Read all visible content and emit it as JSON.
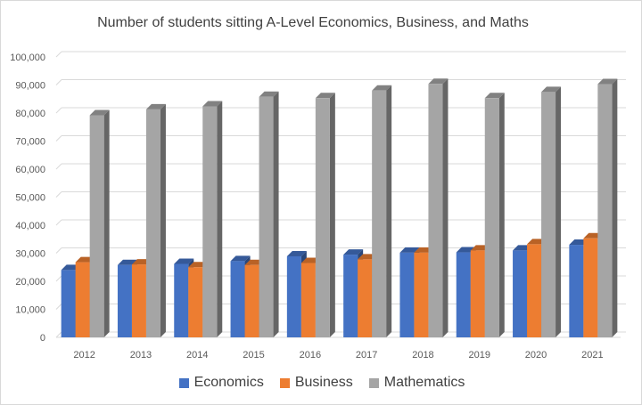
{
  "chart_data": {
    "type": "bar",
    "title": "Number of students sitting A-Level Economics, Business, and Maths",
    "categories": [
      "2012",
      "2013",
      "2014",
      "2015",
      "2016",
      "2017",
      "2018",
      "2019",
      "2020",
      "2021"
    ],
    "series": [
      {
        "name": "Economics",
        "color": "#4472c4",
        "values": [
          24000,
          25800,
          26200,
          27200,
          28900,
          29500,
          30200,
          30300,
          31000,
          33000
        ]
      },
      {
        "name": "Business",
        "color": "#ed7d31",
        "values": [
          26800,
          26000,
          25000,
          25800,
          26500,
          27800,
          30200,
          31000,
          33200,
          35300
        ]
      },
      {
        "name": "Mathematics",
        "color": "#a5a5a5",
        "values": [
          79200,
          81300,
          82400,
          85800,
          85300,
          88000,
          90400,
          85300,
          87500,
          90300
        ]
      }
    ],
    "ylim": [
      0,
      100000
    ],
    "yticks": [
      "0",
      "10,000",
      "20,000",
      "30,000",
      "40,000",
      "50,000",
      "60,000",
      "70,000",
      "80,000",
      "90,000",
      "100,000"
    ],
    "xlabel": "",
    "ylabel": "",
    "grid": true,
    "legend": "bottom"
  }
}
